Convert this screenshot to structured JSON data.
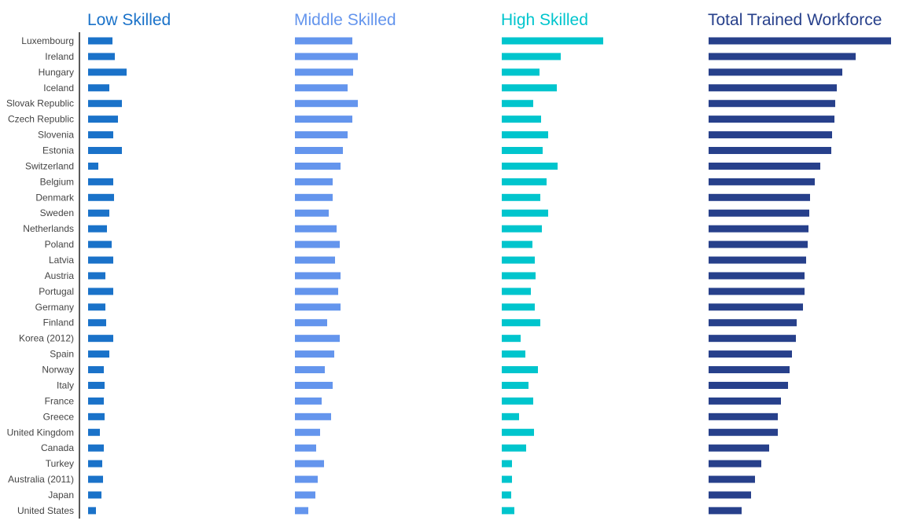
{
  "chart_data": {
    "type": "bar",
    "orientation": "horizontal",
    "grid": false,
    "categories": [
      "Luxembourg",
      "Ireland",
      "Hungary",
      "Iceland",
      "Slovak Republic",
      "Czech Republic",
      "Slovenia",
      "Estonia",
      "Switzerland",
      "Belgium",
      "Denmark",
      "Sweden",
      "Netherlands",
      "Poland",
      "Latvia",
      "Austria",
      "Portugal",
      "Germany",
      "Finland",
      "Korea (2012)",
      "Spain",
      "Norway",
      "Italy",
      "France",
      "Greece",
      "United Kingdom",
      "Canada",
      "Turkey",
      "Australia (2011)",
      "Japan",
      "United States"
    ],
    "series": [
      {
        "name": "Low Skilled",
        "color": "#1a72c9",
        "values": [
          3.1,
          3.4,
          4.9,
          2.7,
          4.3,
          3.8,
          3.2,
          4.3,
          1.3,
          3.2,
          3.3,
          2.7,
          2.4,
          3.0,
          3.2,
          2.2,
          3.2,
          2.2,
          2.3,
          3.2,
          2.7,
          2.0,
          2.1,
          2.0,
          2.1,
          1.5,
          2.0,
          1.8,
          1.9,
          1.7,
          1.0
        ]
      },
      {
        "name": "Middle Skilled",
        "color": "#6495ed",
        "values": [
          7.3,
          8.0,
          7.4,
          6.7,
          8.0,
          7.3,
          6.7,
          6.1,
          5.8,
          4.8,
          4.8,
          4.3,
          5.3,
          5.7,
          5.1,
          5.8,
          5.5,
          5.8,
          4.1,
          5.7,
          5.0,
          3.8,
          4.8,
          3.4,
          4.6,
          3.2,
          2.7,
          3.7,
          2.9,
          2.6,
          1.7
        ]
      },
      {
        "name": "High Skilled",
        "color": "#00c5cd",
        "values": [
          12.9,
          7.5,
          4.8,
          7.0,
          4.0,
          5.0,
          5.9,
          5.2,
          7.1,
          5.7,
          4.9,
          5.9,
          5.1,
          3.9,
          4.2,
          4.3,
          3.7,
          4.2,
          4.9,
          2.4,
          3.0,
          4.6,
          3.4,
          4.0,
          2.2,
          4.1,
          3.1,
          1.3,
          1.3,
          1.2,
          1.6
        ]
      },
      {
        "name": "Total Trained Workforce",
        "color": "#27408b",
        "values": [
          23.2,
          18.7,
          17.0,
          16.3,
          16.1,
          16.0,
          15.7,
          15.6,
          14.2,
          13.5,
          12.9,
          12.8,
          12.7,
          12.6,
          12.4,
          12.2,
          12.2,
          12.0,
          11.2,
          11.1,
          10.6,
          10.3,
          10.1,
          9.2,
          8.8,
          8.8,
          7.7,
          6.7,
          5.9,
          5.4,
          4.2
        ]
      }
    ],
    "xlim": [
      0,
      24
    ],
    "title": "",
    "xlabel": "",
    "ylabel": ""
  }
}
